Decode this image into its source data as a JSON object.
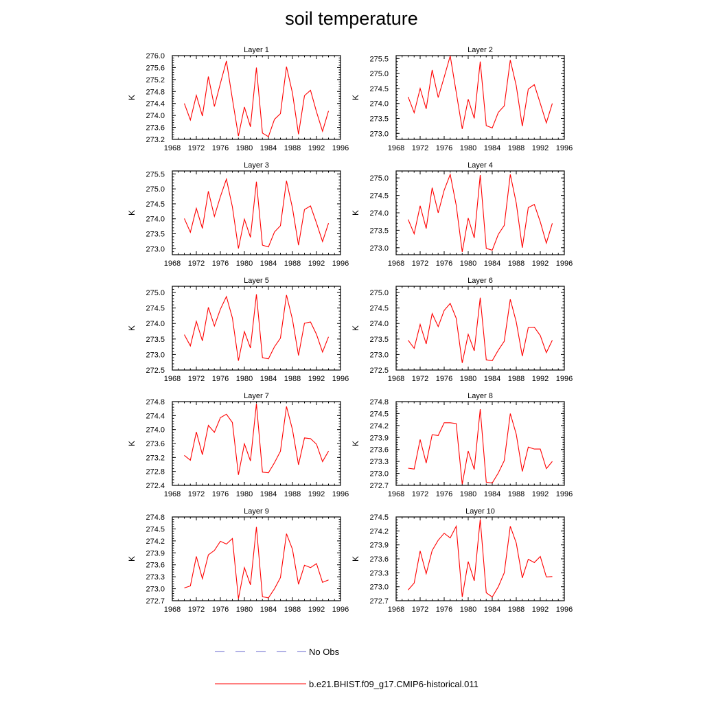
{
  "title": "soil temperature",
  "colors": {
    "model": "#ff0000",
    "obs": "#6666cc"
  },
  "legend": [
    {
      "label": "No Obs",
      "style": "dashed",
      "color": "#6666cc"
    },
    {
      "label": "b.e21.BHIST.f09_g17.CMIP6-historical.011",
      "style": "solid",
      "color": "#ff0000"
    }
  ],
  "chart_data": [
    {
      "type": "line",
      "title": "Layer 1",
      "ylabel": "K",
      "xlim": [
        1968,
        1996
      ],
      "xticks": [
        1968,
        1972,
        1976,
        1980,
        1984,
        1988,
        1992,
        1996
      ],
      "ylim": [
        273.2,
        276.0
      ],
      "yticks": [
        "273.2",
        "273.6",
        "274.0",
        "274.4",
        "274.8",
        "275.2",
        "275.6",
        "276.0"
      ],
      "x": [
        1970,
        1971,
        1972,
        1973,
        1974,
        1975,
        1976,
        1977,
        1978,
        1979,
        1980,
        1981,
        1982,
        1983,
        1984,
        1985,
        1986,
        1987,
        1988,
        1989,
        1990,
        1991,
        1992,
        1993,
        1994
      ],
      "series": [
        {
          "values": [
            274.4,
            273.85,
            274.67,
            273.98,
            275.3,
            274.3,
            275.07,
            275.82,
            274.55,
            273.31,
            274.28,
            273.62,
            275.6,
            273.41,
            273.29,
            273.87,
            274.06,
            275.63,
            274.75,
            273.37,
            274.66,
            274.84,
            274.12,
            273.47,
            274.15
          ]
        }
      ]
    },
    {
      "type": "line",
      "title": "Layer 2",
      "ylabel": "K",
      "xlim": [
        1968,
        1996
      ],
      "xticks": [
        1968,
        1972,
        1976,
        1980,
        1984,
        1988,
        1992,
        1996
      ],
      "ylim": [
        272.8,
        275.6
      ],
      "yticks": [
        "273.0",
        "273.5",
        "274.0",
        "274.5",
        "275.0",
        "275.5"
      ],
      "x": [
        1970,
        1971,
        1972,
        1973,
        1974,
        1975,
        1976,
        1977,
        1978,
        1979,
        1980,
        1981,
        1982,
        1983,
        1984,
        1985,
        1986,
        1987,
        1988,
        1989,
        1990,
        1991,
        1992,
        1993,
        1994
      ],
      "series": [
        {
          "values": [
            274.22,
            273.69,
            274.5,
            273.82,
            275.12,
            274.2,
            274.88,
            275.59,
            274.38,
            273.15,
            274.14,
            273.5,
            275.4,
            273.26,
            273.18,
            273.7,
            273.92,
            275.45,
            274.59,
            273.24,
            274.48,
            274.63,
            274.0,
            273.35,
            274.0
          ]
        }
      ]
    },
    {
      "type": "line",
      "title": "Layer 3",
      "ylabel": "K",
      "xlim": [
        1968,
        1996
      ],
      "xticks": [
        1968,
        1972,
        1976,
        1980,
        1984,
        1988,
        1992,
        1996
      ],
      "ylim": [
        272.8,
        275.6
      ],
      "yticks": [
        "273.0",
        "273.5",
        "274.0",
        "274.5",
        "275.0",
        "275.5"
      ],
      "x": [
        1970,
        1971,
        1972,
        1973,
        1974,
        1975,
        1976,
        1977,
        1978,
        1979,
        1980,
        1981,
        1982,
        1983,
        1984,
        1985,
        1986,
        1987,
        1988,
        1989,
        1990,
        1991,
        1992,
        1993,
        1994
      ],
      "series": [
        {
          "values": [
            274.01,
            273.55,
            274.35,
            273.68,
            274.92,
            274.08,
            274.74,
            275.33,
            274.4,
            273.01,
            273.99,
            273.38,
            275.24,
            273.12,
            273.06,
            273.56,
            273.77,
            275.27,
            274.36,
            273.12,
            274.31,
            274.43,
            273.86,
            273.24,
            273.85
          ]
        }
      ]
    },
    {
      "type": "line",
      "title": "Layer 4",
      "ylabel": "K",
      "xlim": [
        1968,
        1996
      ],
      "xticks": [
        1968,
        1972,
        1976,
        1980,
        1984,
        1988,
        1992,
        1996
      ],
      "ylim": [
        272.8,
        275.2
      ],
      "yticks": [
        "273.0",
        "273.5",
        "274.0",
        "274.5",
        "275.0"
      ],
      "x": [
        1970,
        1971,
        1972,
        1973,
        1974,
        1975,
        1976,
        1977,
        1978,
        1979,
        1980,
        1981,
        1982,
        1983,
        1984,
        1985,
        1986,
        1987,
        1988,
        1989,
        1990,
        1991,
        1992,
        1993,
        1994
      ],
      "series": [
        {
          "values": [
            273.81,
            273.4,
            274.2,
            273.55,
            274.72,
            274.0,
            274.65,
            275.1,
            274.22,
            272.88,
            273.85,
            273.28,
            275.08,
            272.98,
            272.93,
            273.38,
            273.64,
            275.1,
            274.28,
            273.0,
            274.15,
            274.24,
            273.74,
            273.13,
            273.7
          ]
        }
      ]
    },
    {
      "type": "line",
      "title": "Layer 5",
      "ylabel": "K",
      "xlim": [
        1968,
        1996
      ],
      "xticks": [
        1968,
        1972,
        1976,
        1980,
        1984,
        1988,
        1992,
        1996
      ],
      "ylim": [
        272.5,
        275.2
      ],
      "yticks": [
        "272.5",
        "273.0",
        "273.5",
        "274.0",
        "274.5",
        "275.0"
      ],
      "x": [
        1970,
        1971,
        1972,
        1973,
        1974,
        1975,
        1976,
        1977,
        1978,
        1979,
        1980,
        1981,
        1982,
        1983,
        1984,
        1985,
        1986,
        1987,
        1988,
        1989,
        1990,
        1991,
        1992,
        1993,
        1994
      ],
      "series": [
        {
          "values": [
            273.64,
            273.28,
            274.07,
            273.44,
            274.52,
            273.92,
            274.46,
            274.87,
            274.18,
            272.8,
            273.74,
            273.21,
            274.94,
            272.9,
            272.86,
            273.25,
            273.53,
            274.92,
            274.13,
            272.97,
            274.01,
            274.05,
            273.65,
            273.08,
            273.57
          ]
        }
      ]
    },
    {
      "type": "line",
      "title": "Layer 6",
      "ylabel": "K",
      "xlim": [
        1968,
        1996
      ],
      "xticks": [
        1968,
        1972,
        1976,
        1980,
        1984,
        1988,
        1992,
        1996
      ],
      "ylim": [
        272.5,
        275.2
      ],
      "yticks": [
        "272.5",
        "273.0",
        "273.5",
        "274.0",
        "274.5",
        "275.0"
      ],
      "x": [
        1970,
        1971,
        1972,
        1973,
        1974,
        1975,
        1976,
        1977,
        1978,
        1979,
        1980,
        1981,
        1982,
        1983,
        1984,
        1985,
        1986,
        1987,
        1988,
        1989,
        1990,
        1991,
        1992,
        1993,
        1994
      ],
      "series": [
        {
          "values": [
            273.46,
            273.2,
            273.97,
            273.34,
            274.32,
            273.9,
            274.42,
            274.65,
            274.17,
            272.73,
            273.65,
            273.12,
            274.83,
            272.83,
            272.8,
            273.14,
            273.43,
            274.78,
            274.05,
            272.95,
            273.87,
            273.88,
            273.61,
            273.06,
            273.46
          ]
        }
      ]
    },
    {
      "type": "line",
      "title": "Layer 7",
      "ylabel": "K",
      "xlim": [
        1968,
        1996
      ],
      "xticks": [
        1968,
        1972,
        1976,
        1980,
        1984,
        1988,
        1992,
        1996
      ],
      "ylim": [
        272.4,
        274.8
      ],
      "yticks": [
        "272.4",
        "272.8",
        "273.2",
        "273.6",
        "274.0",
        "274.4",
        "274.8"
      ],
      "x": [
        1970,
        1971,
        1972,
        1973,
        1974,
        1975,
        1976,
        1977,
        1978,
        1979,
        1980,
        1981,
        1982,
        1983,
        1984,
        1985,
        1986,
        1987,
        1988,
        1989,
        1990,
        1991,
        1992,
        1993,
        1994
      ],
      "series": [
        {
          "values": [
            273.26,
            273.12,
            273.93,
            273.28,
            274.12,
            273.92,
            274.34,
            274.44,
            274.2,
            272.7,
            273.59,
            273.1,
            274.74,
            272.78,
            272.76,
            273.05,
            273.38,
            274.66,
            274.0,
            272.99,
            273.76,
            273.74,
            273.58,
            273.08,
            273.38
          ]
        }
      ]
    },
    {
      "type": "line",
      "title": "Layer 8",
      "ylabel": "K",
      "xlim": [
        1968,
        1996
      ],
      "xticks": [
        1968,
        1972,
        1976,
        1980,
        1984,
        1988,
        1992,
        1996
      ],
      "ylim": [
        272.7,
        274.8
      ],
      "yticks": [
        "272.7",
        "273.0",
        "273.3",
        "273.6",
        "273.9",
        "274.2",
        "274.5",
        "274.8"
      ],
      "x": [
        1970,
        1971,
        1972,
        1973,
        1974,
        1975,
        1976,
        1977,
        1978,
        1979,
        1980,
        1981,
        1982,
        1983,
        1984,
        1985,
        1986,
        1987,
        1988,
        1989,
        1990,
        1991,
        1992,
        1993,
        1994
      ],
      "series": [
        {
          "values": [
            273.13,
            273.11,
            273.85,
            273.26,
            273.97,
            273.95,
            274.27,
            274.27,
            274.25,
            272.73,
            273.56,
            273.1,
            274.61,
            272.78,
            272.76,
            273.01,
            273.32,
            274.5,
            273.98,
            273.05,
            273.66,
            273.61,
            273.61,
            273.12,
            273.3
          ]
        }
      ]
    },
    {
      "type": "line",
      "title": "Layer 9",
      "ylabel": "K",
      "xlim": [
        1968,
        1996
      ],
      "xticks": [
        1968,
        1972,
        1976,
        1980,
        1984,
        1988,
        1992,
        1996
      ],
      "ylim": [
        272.7,
        274.8
      ],
      "yticks": [
        "272.7",
        "273.0",
        "273.3",
        "273.6",
        "273.9",
        "274.2",
        "274.5",
        "274.8"
      ],
      "x": [
        1970,
        1971,
        1972,
        1973,
        1974,
        1975,
        1976,
        1977,
        1978,
        1979,
        1980,
        1981,
        1982,
        1983,
        1984,
        1985,
        1986,
        1987,
        1988,
        1989,
        1990,
        1991,
        1992,
        1993,
        1994
      ],
      "series": [
        {
          "values": [
            273.02,
            273.07,
            273.81,
            273.25,
            273.85,
            273.96,
            274.19,
            274.12,
            274.26,
            272.75,
            273.53,
            273.1,
            274.55,
            272.8,
            272.77,
            273.0,
            273.28,
            274.38,
            273.99,
            273.11,
            273.59,
            273.53,
            273.63,
            273.16,
            273.22
          ]
        }
      ]
    },
    {
      "type": "line",
      "title": "Layer 10",
      "ylabel": "K",
      "xlim": [
        1968,
        1996
      ],
      "xticks": [
        1968,
        1972,
        1976,
        1980,
        1984,
        1988,
        1992,
        1996
      ],
      "ylim": [
        272.7,
        274.5
      ],
      "yticks": [
        "272.7",
        "273.0",
        "273.3",
        "273.6",
        "273.9",
        "274.2",
        "274.5"
      ],
      "x": [
        1970,
        1971,
        1972,
        1973,
        1974,
        1975,
        1976,
        1977,
        1978,
        1979,
        1980,
        1981,
        1982,
        1983,
        1984,
        1985,
        1986,
        1987,
        1988,
        1989,
        1990,
        1991,
        1992,
        1993,
        1994
      ],
      "series": [
        {
          "values": [
            272.93,
            273.08,
            273.77,
            273.28,
            273.78,
            274.0,
            274.15,
            274.05,
            274.3,
            272.78,
            273.54,
            273.13,
            274.45,
            272.87,
            272.78,
            273.0,
            273.3,
            274.3,
            273.94,
            273.19,
            273.59,
            273.52,
            273.65,
            273.21,
            273.22
          ]
        }
      ]
    }
  ]
}
